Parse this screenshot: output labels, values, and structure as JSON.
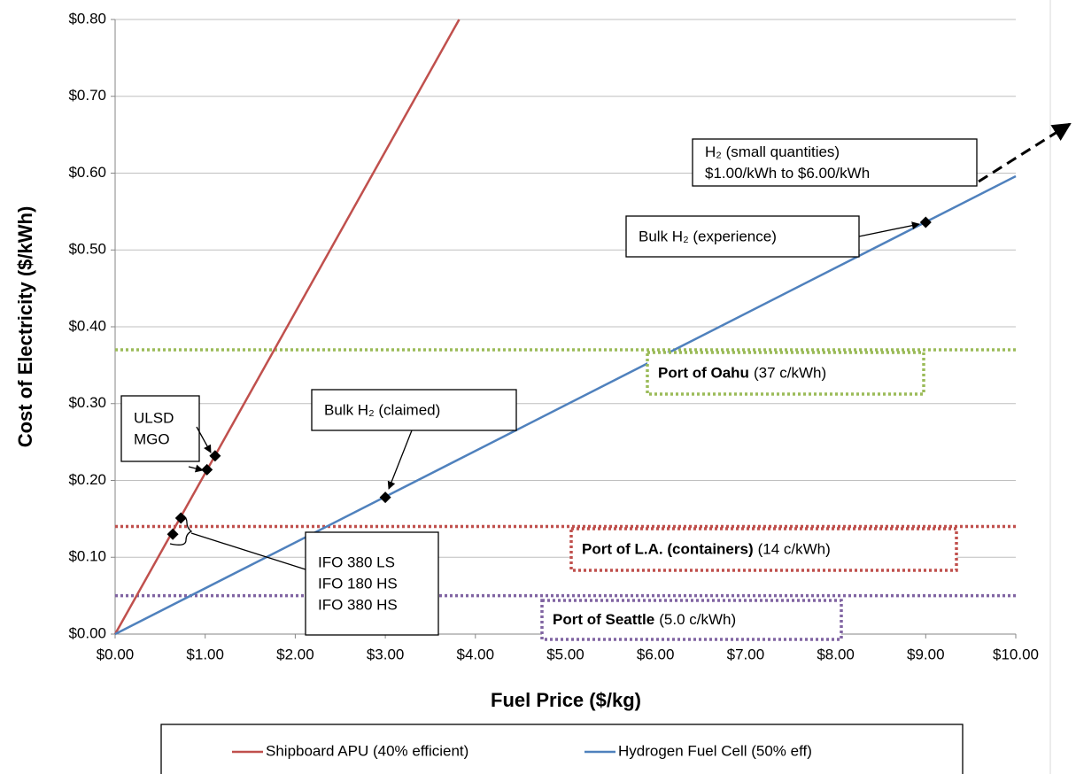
{
  "chart_data": {
    "type": "line",
    "y_label": "Cost of Electricity ($/kWh)",
    "x_label": "Fuel Price ($/kg)",
    "xlim": [
      0,
      10
    ],
    "ylim": [
      0,
      0.8
    ],
    "xticks": [
      {
        "value": 0,
        "label": "$0.00"
      },
      {
        "value": 1,
        "label": "$1.00"
      },
      {
        "value": 2,
        "label": "$2.00"
      },
      {
        "value": 3,
        "label": "$3.00"
      },
      {
        "value": 4,
        "label": "$4.00"
      },
      {
        "value": 5,
        "label": "$5.00"
      },
      {
        "value": 6,
        "label": "$6.00"
      },
      {
        "value": 7,
        "label": "$7.00"
      },
      {
        "value": 8,
        "label": "$8.00"
      },
      {
        "value": 9,
        "label": "$9.00"
      },
      {
        "value": 10,
        "label": "$10.00"
      }
    ],
    "yticks": [
      {
        "value": 0,
        "label": "$0.00"
      },
      {
        "value": 0.1,
        "label": "$0.10"
      },
      {
        "value": 0.2,
        "label": "$0.20"
      },
      {
        "value": 0.3,
        "label": "$0.30"
      },
      {
        "value": 0.4,
        "label": "$0.40"
      },
      {
        "value": 0.5,
        "label": "$0.50"
      },
      {
        "value": 0.6,
        "label": "$0.60"
      },
      {
        "value": 0.7,
        "label": "$0.70"
      },
      {
        "value": 0.8,
        "label": "$0.80"
      }
    ],
    "grid": true,
    "series": [
      {
        "name": "Shipboard APU (40% efficient)",
        "color": "#c0504d",
        "x": [
          0,
          3.82
        ],
        "values": [
          0,
          0.8
        ]
      },
      {
        "name": "Hydrogen Fuel Cell (50% eff)",
        "color": "#4f81bd",
        "x": [
          0,
          10
        ],
        "values": [
          0,
          0.596
        ]
      }
    ],
    "markers": {
      "color": "#000000",
      "x": [
        0.64,
        0.73,
        1.02,
        1.11,
        3.0,
        9.0
      ],
      "values": [
        0.13,
        0.151,
        0.214,
        0.232,
        0.178,
        0.536
      ]
    },
    "reference_lines": [
      {
        "value": 0.37,
        "color": "#9bbb59",
        "bold": "Port of Oahu",
        "label": "(37 c/kWh)"
      },
      {
        "value": 0.14,
        "color": "#c0504d",
        "bold": "Port of L.A. (containers)",
        "label": "(14 c/kWh)"
      },
      {
        "value": 0.05,
        "color": "#8064a2",
        "bold": "Port of Seattle",
        "label": "(5.0 c/kWh)"
      }
    ],
    "annotations": [
      {
        "lines": [
          "H₂ (small quantities)",
          "$1.00/kWh to $6.00/kWh"
        ]
      },
      {
        "lines": [
          "Bulk H₂ (experience)"
        ]
      },
      {
        "lines": [
          "Bulk H₂ (claimed)"
        ]
      },
      {
        "lines": [
          "ULSD",
          "MGO"
        ]
      },
      {
        "lines": [
          "IFO 380 LS",
          "IFO 180 HS",
          "IFO 380 HS"
        ]
      }
    ]
  }
}
